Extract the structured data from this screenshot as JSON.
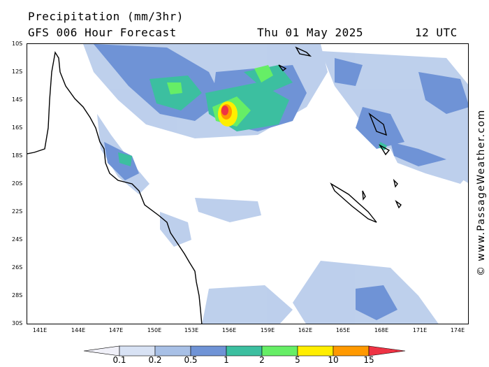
{
  "header": {
    "title": "Precipitation (mm/3hr)",
    "subtitle": "GFS 006 Hour Forecast",
    "date": "Thu 01 May 2025",
    "time": "12 UTC"
  },
  "axes": {
    "lat_labels": [
      "10S",
      "12S",
      "14S",
      "16S",
      "18S",
      "20S",
      "22S",
      "24S",
      "26S",
      "28S",
      "30S"
    ],
    "lon_labels": [
      "141E",
      "144E",
      "147E",
      "150E",
      "153E",
      "156E",
      "159E",
      "162E",
      "165E",
      "168E",
      "171E",
      "174E"
    ]
  },
  "colorbar": {
    "labels": [
      "0.1",
      "0.2",
      "0.5",
      "1",
      "2",
      "5",
      "10",
      "15"
    ],
    "colors": [
      "#f0f0f8",
      "#d8e2f4",
      "#a8c0e6",
      "#6f93d6",
      "#3cbfa0",
      "#66ee66",
      "#ffee00",
      "#ff9900",
      "#ee3344"
    ]
  },
  "credit": "© www.PassageWeather.com"
}
